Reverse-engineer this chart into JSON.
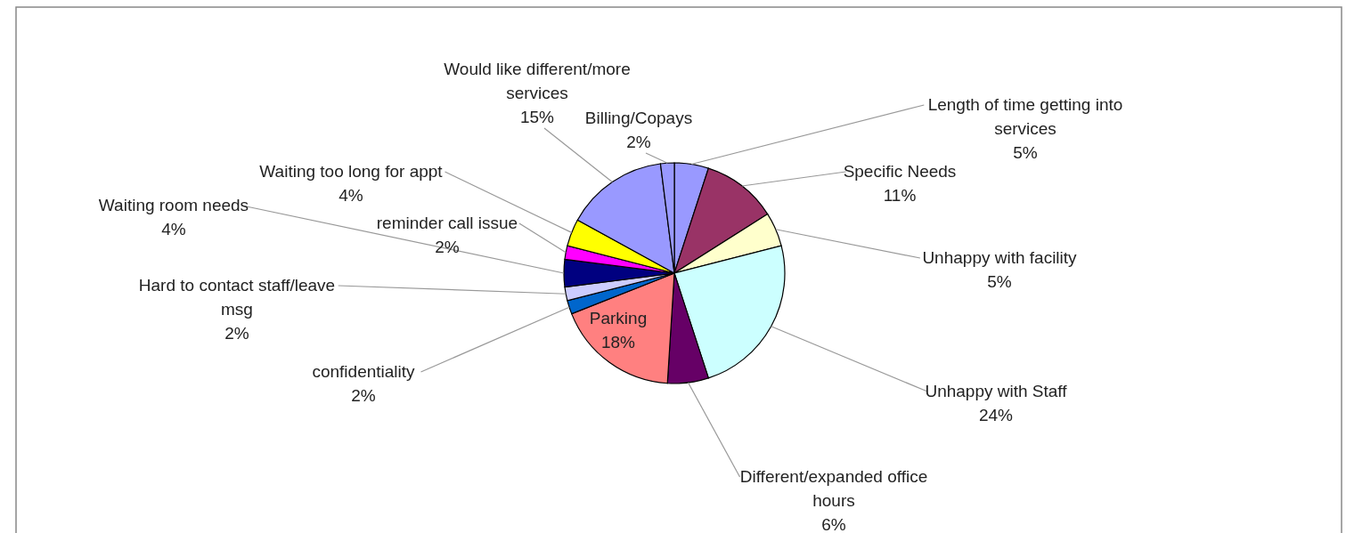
{
  "chart_data": {
    "type": "pie",
    "categories": [
      "Length of time getting into services",
      "Specific Needs",
      "Unhappy with facility",
      "Unhappy with Staff",
      "Different/expanded office hours",
      "Parking",
      "confidentiality",
      "Hard to contact staff/leave msg",
      "Waiting room needs",
      "reminder call issue",
      "Waiting too long for appt",
      "Would like different/more services",
      "Billing/Copays"
    ],
    "values": [
      5,
      11,
      5,
      24,
      6,
      18,
      2,
      2,
      4,
      2,
      4,
      15,
      2
    ],
    "colors": [
      "#9999ff",
      "#993366",
      "#ffffcc",
      "#ccffff",
      "#660066",
      "#ff8080",
      "#0066cc",
      "#ccccff",
      "#000080",
      "#ff00ff",
      "#ffff00",
      "#9999ff",
      "#9999ff"
    ],
    "value_labels": [
      "5%",
      "11%",
      "5%",
      "24%",
      "6%",
      "18%",
      "2%",
      "2%",
      "4%",
      "2%",
      "4%",
      "15%",
      "2%"
    ]
  }
}
